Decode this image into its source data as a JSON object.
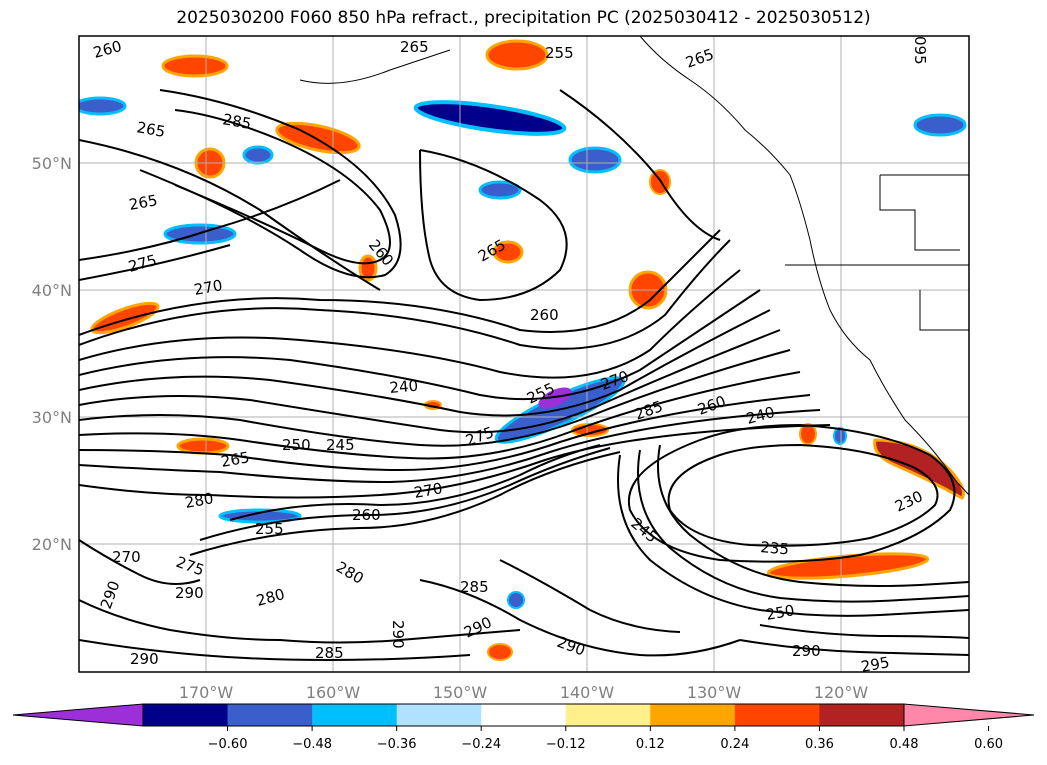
{
  "title": "2025030200 F060 850 hPa refract., precipitation PC (2025030412 - 2025030512)",
  "lon_ticks": [
    "170°W",
    "160°W",
    "150°W",
    "140°W",
    "130°W",
    "120°W"
  ],
  "lat_ticks": [
    "50°N",
    "40°N",
    "30°N",
    "20°N"
  ],
  "contour_labels": [
    "260",
    "265",
    "255",
    "265",
    "285",
    "265",
    "265",
    "260",
    "265",
    "275",
    "270",
    "260",
    "240",
    "255",
    "270",
    "285",
    "260",
    "240",
    "250",
    "245",
    "265",
    "275",
    "280",
    "270",
    "230",
    "245",
    "235",
    "260",
    "255",
    "280",
    "270",
    "275",
    "280",
    "290",
    "285",
    "290",
    "290",
    "250",
    "290",
    "295",
    "290",
    "285",
    "290",
    "290",
    "095"
  ],
  "colorbar": {
    "ticks": [
      "−0.60",
      "−0.48",
      "−0.36",
      "−0.24",
      "−0.12",
      "0.12",
      "0.24",
      "0.36",
      "0.48",
      "0.60"
    ],
    "colors": [
      "#9b30d9",
      "#00008b",
      "#3a5fcd",
      "#00bfff",
      "#b0e2ff",
      "#ffffff",
      "#fff08c",
      "#ffa500",
      "#ff4500",
      "#b22222",
      "#ff88aa"
    ]
  }
}
